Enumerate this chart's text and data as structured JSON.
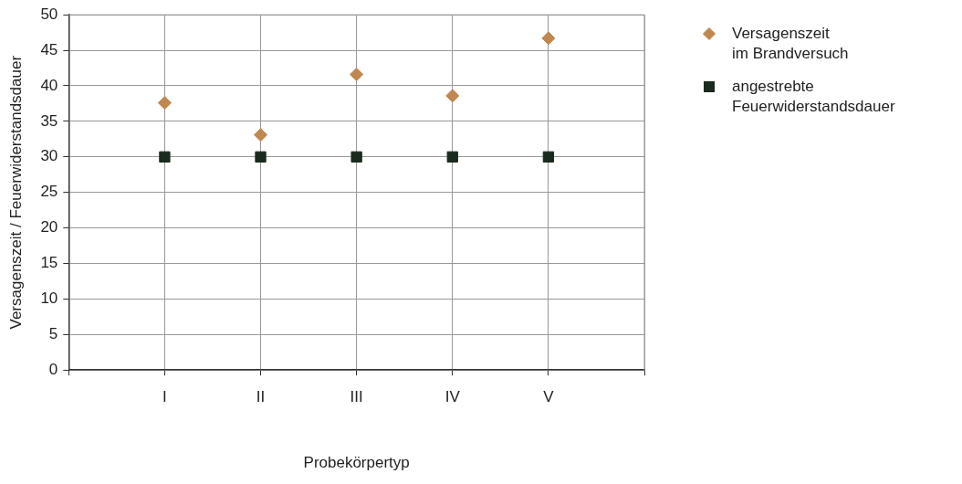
{
  "chart_data": {
    "type": "scatter",
    "xlabel": "Probekörpertyp",
    "ylabel": "Versagenszeit / Feuerwiderstandsdauer",
    "categories": [
      "I",
      "II",
      "III",
      "IV",
      "V"
    ],
    "series": [
      {
        "name": "Versagenszeit im Brandversuch",
        "color": "#c0884f",
        "marker": "diamond",
        "values": [
          37.6,
          33.1,
          41.6,
          38.6,
          46.7
        ]
      },
      {
        "name": "angestrebte Feuerwiderstandsdauer",
        "color": "#1a2a1e",
        "marker": "square",
        "values": [
          30,
          30,
          30,
          30,
          30
        ]
      }
    ],
    "ylim": [
      0,
      50
    ],
    "yticks": [
      0,
      5,
      10,
      15,
      20,
      25,
      30,
      35,
      40,
      45,
      50
    ],
    "grid": true,
    "legend": "right"
  }
}
